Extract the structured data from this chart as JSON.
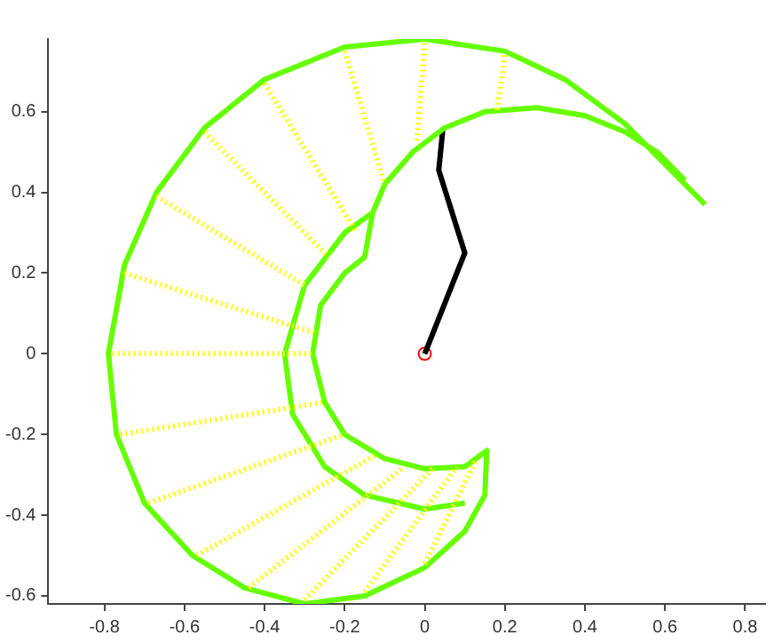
{
  "chart_data": {
    "type": "line",
    "xlim": [
      -0.94,
      0.85
    ],
    "ylim": [
      -0.62,
      0.78
    ],
    "xticks": [
      -0.8,
      -0.6,
      -0.4,
      -0.2,
      0,
      0.2,
      0.4,
      0.6,
      0.8
    ],
    "yticks": [
      -0.6,
      -0.4,
      -0.2,
      0,
      0.2,
      0.4,
      0.6
    ],
    "grid": false,
    "legend": false,
    "marker": "none",
    "series": [
      {
        "color": "#ffff00",
        "line_style": "dotted",
        "x": [
          0.2,
          0.18,
          null,
          0,
          -0.02,
          null,
          -0.2,
          -0.1,
          null,
          -0.4,
          -0.17,
          null,
          -0.55,
          -0.24,
          null,
          -0.67,
          -0.3,
          null,
          -0.75,
          -0.27,
          null,
          -0.78,
          -0.28,
          null,
          -0.76,
          -0.25,
          null,
          -0.69,
          -0.2,
          null,
          -0.57,
          -0.12,
          null,
          -0.44,
          -0.05,
          null,
          -0.3,
          0.02,
          null,
          -0.15,
          0.08,
          null,
          0,
          0.13
        ],
        "values": [
          0.74,
          0.6,
          null,
          0.77,
          0.52,
          null,
          0.75,
          0.42,
          null,
          0.67,
          0.3,
          null,
          0.55,
          0.24,
          null,
          0.39,
          0.17,
          null,
          0.2,
          0.05,
          null,
          0,
          0,
          null,
          -0.2,
          -0.12,
          null,
          -0.37,
          -0.2,
          null,
          -0.5,
          -0.25,
          null,
          -0.58,
          -0.28,
          null,
          -0.61,
          -0.285,
          null,
          -0.59,
          -0.28,
          null,
          -0.52,
          -0.26
        ]
      },
      {
        "color": "#66ff00",
        "x": [
          0.7,
          0.62,
          0.5,
          0.35,
          0.2,
          0,
          -0.2,
          -0.4,
          -0.55,
          -0.67,
          -0.75,
          -0.79,
          -0.77,
          -0.7,
          -0.58,
          -0.45,
          -0.3,
          -0.15,
          0,
          0.1,
          0.15,
          0.155,
          0.1,
          0,
          -0.1,
          -0.2,
          -0.25,
          -0.28,
          -0.26,
          -0.2,
          -0.15,
          -0.13,
          -0.1,
          -0.03,
          0.05,
          0.15,
          0.28,
          0.4,
          0.5,
          0.58,
          0.65
        ],
        "values": [
          0.37,
          0.45,
          0.57,
          0.68,
          0.75,
          0.78,
          0.76,
          0.68,
          0.56,
          0.4,
          0.22,
          0,
          -0.2,
          -0.37,
          -0.5,
          -0.58,
          -0.62,
          -0.6,
          -0.53,
          -0.44,
          -0.35,
          -0.24,
          -0.28,
          -0.285,
          -0.26,
          -0.2,
          -0.12,
          0,
          0.12,
          0.2,
          0.24,
          0.35,
          0.42,
          0.5,
          0.56,
          0.6,
          0.61,
          0.59,
          0.55,
          0.5,
          0.43
        ]
      },
      {
        "color": "#66ff00",
        "x": [
          -0.13,
          -0.2,
          -0.3,
          -0.35,
          -0.33,
          -0.25,
          -0.15,
          0,
          0.1
        ],
        "values": [
          0.35,
          0.3,
          0.17,
          0,
          -0.15,
          -0.28,
          -0.35,
          -0.385,
          -0.37
        ]
      },
      {
        "color": "#000000",
        "x": [
          0,
          0.1,
          0.035,
          0.045
        ],
        "values": [
          0,
          0.25,
          0.455,
          0.555
        ]
      },
      {
        "type": "scatter",
        "color": "#ff0000",
        "marker": "circle",
        "x": [
          0
        ],
        "values": [
          0
        ]
      }
    ]
  }
}
